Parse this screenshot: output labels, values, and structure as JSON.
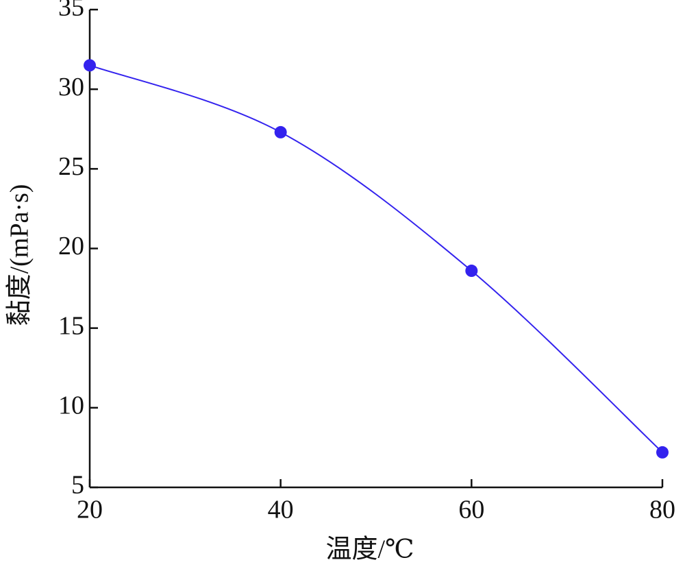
{
  "chart_data": {
    "type": "line",
    "x_label": "温度/℃",
    "y_label": "黏度/(mPa·s)",
    "x": [
      20,
      40,
      60,
      80
    ],
    "series": [
      {
        "name": "黏度",
        "color": "#3322ee",
        "values": [
          31.5,
          27.3,
          18.6,
          7.2
        ]
      }
    ],
    "xlim": [
      20,
      80
    ],
    "xticks": [
      20,
      40,
      60,
      80
    ],
    "ylim": [
      5,
      35
    ],
    "yticks": [
      5,
      10,
      15,
      20,
      25,
      30,
      35
    ],
    "grid": false
  }
}
